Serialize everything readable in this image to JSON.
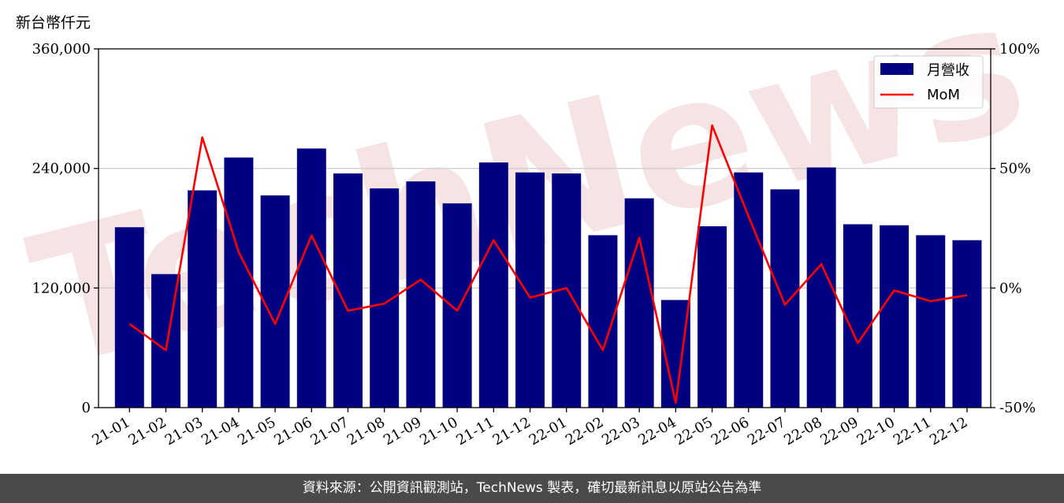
{
  "unit_label": "新台幣仟元",
  "footer_text": "資料來源：公開資訊觀測站，TechNews 製表，確切最新訊息以原站公告為準",
  "colors": {
    "bar": "#000080",
    "line": "#ff0000",
    "grid": "#d0d0d0",
    "footer_bg": "#4a4a4a",
    "watermark": "#f2d6d6"
  },
  "chart_data": {
    "type": "bar",
    "title": "",
    "xlabel": "",
    "ylabel": "新台幣仟元",
    "ylim": [
      0,
      360000
    ],
    "y_ticks": [
      0,
      120000,
      240000,
      360000
    ],
    "y_tick_labels": [
      "0",
      "120,000",
      "240,000",
      "360,000"
    ],
    "y2lim": [
      -0.5,
      1.0
    ],
    "y2_ticks": [
      -0.5,
      0,
      0.5,
      1.0
    ],
    "y2_tick_labels": [
      "-50%",
      "0%",
      "50%",
      "100%"
    ],
    "grid": "horizontal",
    "legend_position": "top-right",
    "categories": [
      "21-01",
      "21-02",
      "21-03",
      "21-04",
      "21-05",
      "21-06",
      "21-07",
      "21-08",
      "21-09",
      "21-10",
      "21-11",
      "21-12",
      "22-01",
      "22-02",
      "22-03",
      "22-04",
      "22-05",
      "22-06",
      "22-07",
      "22-08",
      "22-09",
      "22-10",
      "22-11",
      "22-12"
    ],
    "series": [
      {
        "name": "月營收",
        "type": "bar",
        "axis": "left",
        "values": [
          181000,
          134000,
          218000,
          251000,
          213000,
          260000,
          235000,
          220000,
          227000,
          205000,
          246000,
          236000,
          235000,
          173000,
          210000,
          108000,
          182000,
          236000,
          219000,
          241000,
          184000,
          183000,
          173000,
          168000
        ]
      },
      {
        "name": "MoM",
        "type": "line",
        "axis": "right",
        "values": [
          -0.15,
          -0.26,
          0.63,
          0.15,
          -0.15,
          0.22,
          -0.095,
          -0.065,
          0.035,
          -0.095,
          0.2,
          -0.04,
          0.0,
          -0.26,
          0.21,
          -0.48,
          0.68,
          0.3,
          -0.07,
          0.1,
          -0.23,
          -0.01,
          -0.055,
          -0.03
        ]
      }
    ]
  }
}
